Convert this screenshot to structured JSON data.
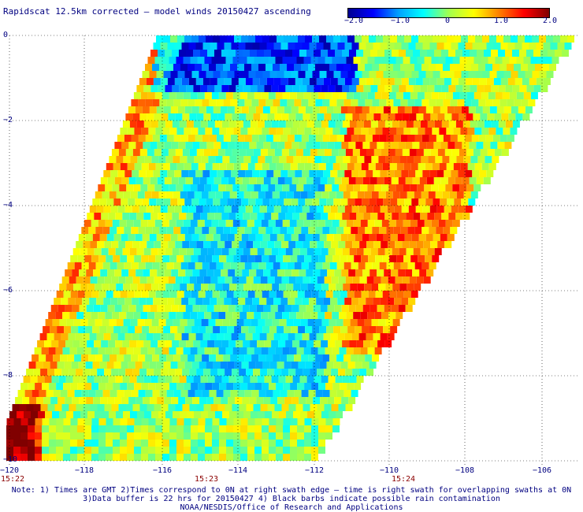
{
  "title": "Rapidscat 12.5km corrected – model winds 20150427 ascending",
  "colorbar": {
    "ticks": [
      "−2.0",
      "−1.0",
      "0",
      "1.0",
      "2.0"
    ],
    "min": -2.0,
    "max": 2.0,
    "colors": [
      "#000090",
      "#0000ff",
      "#00a0ff",
      "#00ffff",
      "#a0ff50",
      "#ffff00",
      "#ff8000",
      "#ff0000",
      "#800000"
    ]
  },
  "map": {
    "lat_ticks": [
      "0",
      "−2",
      "−4",
      "−6",
      "−8",
      "−10"
    ],
    "lon_ticks": [
      "−120",
      "−118",
      "−116",
      "−114",
      "−112",
      "−110",
      "−108",
      "−106"
    ],
    "time_labels": [
      "15:22",
      "15:23",
      "15:24"
    ],
    "lat_range": [
      -10,
      0
    ],
    "lon_range": [
      -120,
      -105.5
    ],
    "grid": "dotted"
  },
  "notes": {
    "line1": "Note: 1) Times are GMT 2)Times correspond to 0N at right swath edge – time is right swath for overlapping swaths at 0N",
    "line2": "3)Data buffer is 22 hrs for 20150427 4) Black barbs indicate possible rain contamination",
    "line3": "NOAA/NESDIS/Office of Research and Applications"
  }
}
